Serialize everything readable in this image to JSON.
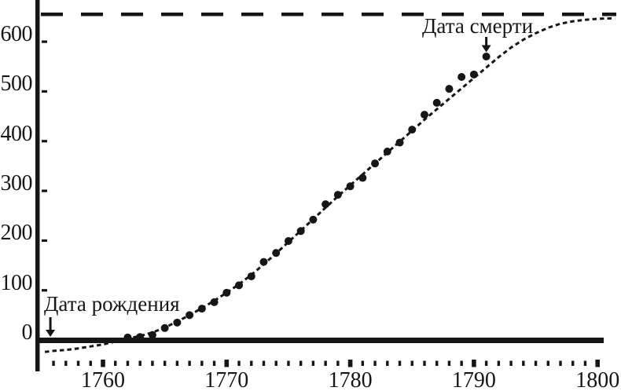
{
  "figure": {
    "background": "#ffffff",
    "ink": "#161616"
  },
  "y_axis": {
    "tick_values": [
      0,
      100,
      200,
      300,
      400,
      500,
      600
    ],
    "tick_labels": [
      "0",
      "100",
      "200",
      "300",
      "400",
      "500",
      "600"
    ]
  },
  "x_axis": {
    "tick_values": [
      1760,
      1770,
      1780,
      1790,
      1800
    ],
    "tick_labels": [
      "1760",
      "1770",
      "1780",
      "1790",
      "1800"
    ],
    "minor_ticks": {
      "from": 1756,
      "to": 1800,
      "step": 1
    }
  },
  "chart_data": {
    "type": "scatter",
    "title": "",
    "xlabel": "",
    "ylabel": "",
    "xlim": [
      1755,
      1801.5
    ],
    "ylim": [
      -40,
      680
    ],
    "grid": false,
    "legend": false,
    "series": [
      {
        "name": "observed-cumulative-counts",
        "type": "scatter",
        "marker": "filled-circle",
        "x": [
          1762,
          1763,
          1764,
          1765,
          1766,
          1767,
          1768,
          1769,
          1770,
          1771,
          1772,
          1773,
          1774,
          1775,
          1776,
          1777,
          1778,
          1779,
          1780,
          1781,
          1782,
          1783,
          1784,
          1785,
          1786,
          1787,
          1788,
          1789,
          1790,
          1791
        ],
        "y": [
          5,
          6,
          10,
          24,
          35,
          50,
          63,
          76,
          95,
          110,
          128,
          157,
          175,
          199,
          219,
          242,
          273,
          292,
          309,
          326,
          355,
          379,
          397,
          423,
          453,
          477,
          505,
          529,
          534,
          570
        ]
      },
      {
        "name": "logistic-fit-curve",
        "type": "line",
        "line_style": "dotted",
        "x": [
          1755.3,
          1756,
          1757,
          1758,
          1759,
          1760,
          1761,
          1762,
          1763,
          1764,
          1765,
          1766,
          1767,
          1768,
          1769,
          1770,
          1771,
          1772,
          1773,
          1774,
          1775,
          1776,
          1777,
          1778,
          1779,
          1780,
          1781,
          1782,
          1783,
          1784,
          1785,
          1786,
          1787,
          1788,
          1789,
          1790,
          1791,
          1792,
          1793,
          1794,
          1795,
          1796,
          1797,
          1798,
          1799,
          1800,
          1801.4
        ],
        "y": [
          -24,
          -22,
          -20,
          -17,
          -13,
          -9,
          -3,
          3,
          8,
          15,
          25,
          37,
          50,
          64,
          79,
          95,
          112,
          131,
          152,
          174,
          197,
          220,
          243,
          266,
          289,
          311,
          333,
          355,
          377,
          399,
          421,
          443,
          464,
          485,
          506,
          527,
          548,
          569,
          588,
          604,
          617,
          628,
          636,
          641,
          644,
          646,
          647
        ]
      },
      {
        "name": "upper-asymptote",
        "type": "hline",
        "line_style": "long-dash",
        "value": 655
      }
    ],
    "annotations": {
      "birth": {
        "label": "Дата рождения",
        "year": 1756
      },
      "death": {
        "label": "Дата смерти",
        "year": 1791,
        "points_to_value": 570
      }
    }
  }
}
